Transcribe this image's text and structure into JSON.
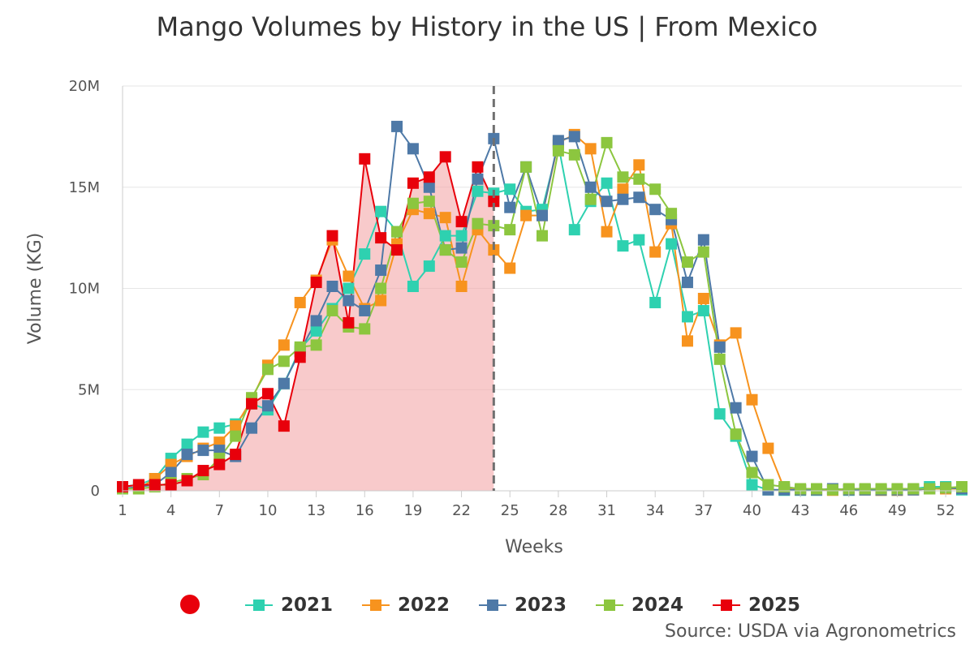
{
  "chart_data": {
    "type": "line",
    "title": "Mango Volumes by History in the US | From Mexico",
    "xlabel": "Weeks",
    "ylabel": "Volume (KG)",
    "ylim": [
      0,
      20000000
    ],
    "xlim": [
      1,
      53
    ],
    "x_tick_labels": [
      "1",
      "4",
      "7",
      "10",
      "13",
      "16",
      "19",
      "22",
      "25",
      "28",
      "31",
      "34",
      "37",
      "40",
      "43",
      "46",
      "49",
      "52"
    ],
    "y_tick_labels": [
      "0",
      "5M",
      "10M",
      "15M",
      "20M"
    ],
    "current_week_marker": 24,
    "source": "Source: USDA via Agronometrics",
    "legend": [
      "2021",
      "2022",
      "2023",
      "2024",
      "2025"
    ],
    "series": [
      {
        "name": "2021",
        "color": "#2ed1b0",
        "filled": false,
        "x": [
          1,
          2,
          3,
          4,
          5,
          6,
          7,
          8,
          9,
          10,
          11,
          12,
          13,
          14,
          15,
          16,
          17,
          18,
          19,
          20,
          21,
          22,
          23,
          24,
          25,
          26,
          27,
          28,
          29,
          30,
          31,
          32,
          33,
          34,
          35,
          36,
          37,
          38,
          39,
          40,
          41,
          42,
          43,
          44,
          45,
          46,
          47,
          48,
          49,
          50,
          51,
          52,
          53
        ],
        "values": [
          200000,
          300000,
          600000,
          1600000,
          2300000,
          2900000,
          3100000,
          3300000,
          4300000,
          4000000,
          5300000,
          7000000,
          7900000,
          9000000,
          10000000,
          11700000,
          13800000,
          12800000,
          10100000,
          11100000,
          12600000,
          12600000,
          14800000,
          14700000,
          14900000,
          13800000,
          13900000,
          17100000,
          12900000,
          14300000,
          15200000,
          12100000,
          12400000,
          9300000,
          12200000,
          8600000,
          8900000,
          3800000,
          2700000,
          300000,
          50000,
          30000,
          30000,
          30000,
          50000,
          30000,
          50000,
          30000,
          30000,
          100000,
          200000,
          200000,
          50000
        ]
      },
      {
        "name": "2022",
        "color": "#f7931e",
        "filled": false,
        "x": [
          1,
          2,
          3,
          4,
          5,
          6,
          7,
          8,
          9,
          10,
          11,
          12,
          13,
          14,
          15,
          16,
          17,
          18,
          19,
          20,
          21,
          22,
          23,
          24,
          25,
          26,
          27,
          28,
          29,
          30,
          31,
          32,
          33,
          34,
          35,
          36,
          37,
          38,
          39,
          40,
          41,
          42,
          43,
          44,
          45,
          46,
          47,
          48,
          49,
          50,
          51,
          52,
          53
        ],
        "values": [
          100000,
          100000,
          600000,
          1300000,
          1700000,
          2100000,
          2400000,
          3200000,
          4500000,
          6200000,
          7200000,
          9300000,
          10400000,
          12400000,
          10600000,
          9000000,
          9400000,
          12200000,
          13900000,
          13700000,
          13500000,
          10100000,
          12900000,
          11900000,
          11000000,
          13600000,
          13600000,
          17200000,
          17600000,
          16900000,
          12800000,
          14900000,
          16100000,
          11800000,
          13200000,
          7400000,
          9500000,
          7200000,
          7800000,
          4500000,
          2100000,
          100000,
          50000,
          50000,
          30000,
          50000,
          50000,
          30000,
          30000,
          50000,
          100000,
          100000,
          100000
        ]
      },
      {
        "name": "2023",
        "color": "#4e79a7",
        "filled": false,
        "x": [
          1,
          2,
          3,
          4,
          5,
          6,
          7,
          8,
          9,
          10,
          11,
          12,
          13,
          14,
          15,
          16,
          17,
          18,
          19,
          20,
          21,
          22,
          23,
          24,
          25,
          26,
          27,
          28,
          29,
          30,
          31,
          32,
          33,
          34,
          35,
          36,
          37,
          38,
          39,
          40,
          41,
          42,
          43,
          44,
          45,
          46,
          47,
          48,
          49,
          50,
          51,
          52,
          53
        ],
        "values": [
          100000,
          200000,
          300000,
          900000,
          1800000,
          2000000,
          2000000,
          1700000,
          3100000,
          4200000,
          5300000,
          6900000,
          8400000,
          10100000,
          9400000,
          8900000,
          10900000,
          18000000,
          16900000,
          15000000,
          11900000,
          12000000,
          15400000,
          17400000,
          14000000,
          16000000,
          13600000,
          17300000,
          17500000,
          15000000,
          14300000,
          14400000,
          14500000,
          13900000,
          13400000,
          10300000,
          12400000,
          7100000,
          4100000,
          1700000,
          50000,
          50000,
          50000,
          50000,
          100000,
          50000,
          50000,
          50000,
          50000,
          50000,
          100000,
          150000,
          100000
        ]
      },
      {
        "name": "2024",
        "color": "#8cc63f",
        "filled": false,
        "x": [
          1,
          2,
          3,
          4,
          5,
          6,
          7,
          8,
          9,
          10,
          11,
          12,
          13,
          14,
          15,
          16,
          17,
          18,
          19,
          20,
          21,
          22,
          23,
          24,
          25,
          26,
          27,
          28,
          29,
          30,
          31,
          32,
          33,
          34,
          35,
          36,
          37,
          38,
          39,
          40,
          41,
          42,
          43,
          44,
          45,
          46,
          47,
          48,
          49,
          50,
          51,
          52,
          53
        ],
        "values": [
          100000,
          100000,
          200000,
          400000,
          600000,
          800000,
          1600000,
          2700000,
          4600000,
          6000000,
          6400000,
          7100000,
          7200000,
          8900000,
          8100000,
          8000000,
          10000000,
          12800000,
          14200000,
          14300000,
          11900000,
          11300000,
          13200000,
          13100000,
          12900000,
          16000000,
          12600000,
          16800000,
          16600000,
          14400000,
          17200000,
          15500000,
          15400000,
          14900000,
          13700000,
          11300000,
          11800000,
          6500000,
          2800000,
          900000,
          300000,
          200000,
          100000,
          100000,
          50000,
          100000,
          100000,
          100000,
          100000,
          100000,
          100000,
          150000,
          200000
        ]
      },
      {
        "name": "2025",
        "color": "#e8000b",
        "filled": true,
        "x": [
          1,
          2,
          3,
          4,
          5,
          6,
          7,
          8,
          9,
          10,
          11,
          12,
          13,
          14,
          15,
          16,
          17,
          18,
          19,
          20,
          21,
          22,
          23,
          24
        ],
        "values": [
          200000,
          300000,
          300000,
          300000,
          500000,
          1000000,
          1300000,
          1800000,
          4300000,
          4800000,
          3200000,
          6600000,
          10300000,
          12600000,
          8300000,
          16400000,
          12500000,
          11900000,
          15200000,
          15500000,
          16500000,
          13300000,
          16000000,
          14300000
        ]
      }
    ]
  }
}
